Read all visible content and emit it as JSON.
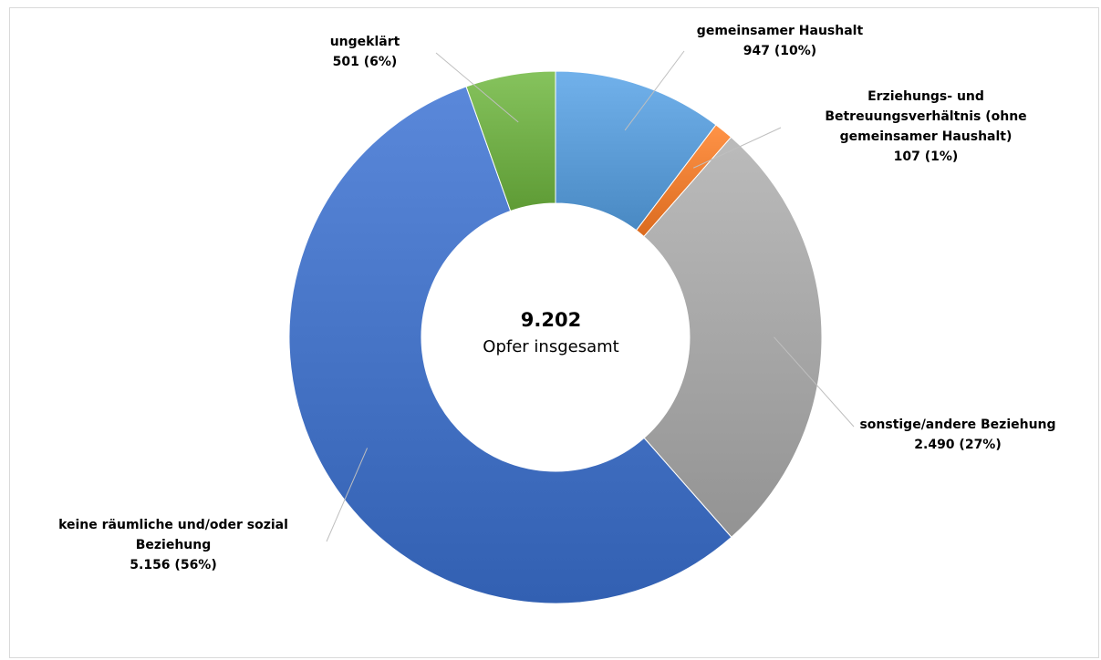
{
  "chart_data": {
    "type": "pie",
    "donut": true,
    "center": {
      "total": "9.202",
      "subtitle": "Opfer insgesamt"
    },
    "slices": [
      {
        "name": "gemeinsamer Haushalt",
        "value": 947,
        "percent": 10,
        "label_lines": [
          "gemeinsamer Haushalt",
          "947 (10%)"
        ],
        "color": "#5b9bd5"
      },
      {
        "name": "Erziehungs- und Betreuungsverhältnis (ohne gemeinsamer Haushalt)",
        "value": 107,
        "percent": 1,
        "label_lines": [
          "Erziehungs- und",
          "Betreuungsverhältnis (ohne",
          "gemeinsamer Haushalt)",
          "107 (1%)"
        ],
        "color": "#ed7d31"
      },
      {
        "name": "sonstige/andere Beziehung",
        "value": 2490,
        "percent": 27,
        "label_lines": [
          "sonstige/andere Beziehung",
          "2.490 (27%)"
        ],
        "color": "#a5a5a5"
      },
      {
        "name": "keine räumliche und/oder sozial Beziehung",
        "value": 5156,
        "percent": 56,
        "label_lines": [
          "keine räumliche und/oder sozial",
          "Beziehung",
          "5.156 (56%)"
        ],
        "color": "#4472c4"
      },
      {
        "name": "ungeklärt",
        "value": 501,
        "percent": 6,
        "label_lines": [
          "ungeklärt",
          "501 (6%)"
        ],
        "color": "#70ad47"
      }
    ]
  }
}
